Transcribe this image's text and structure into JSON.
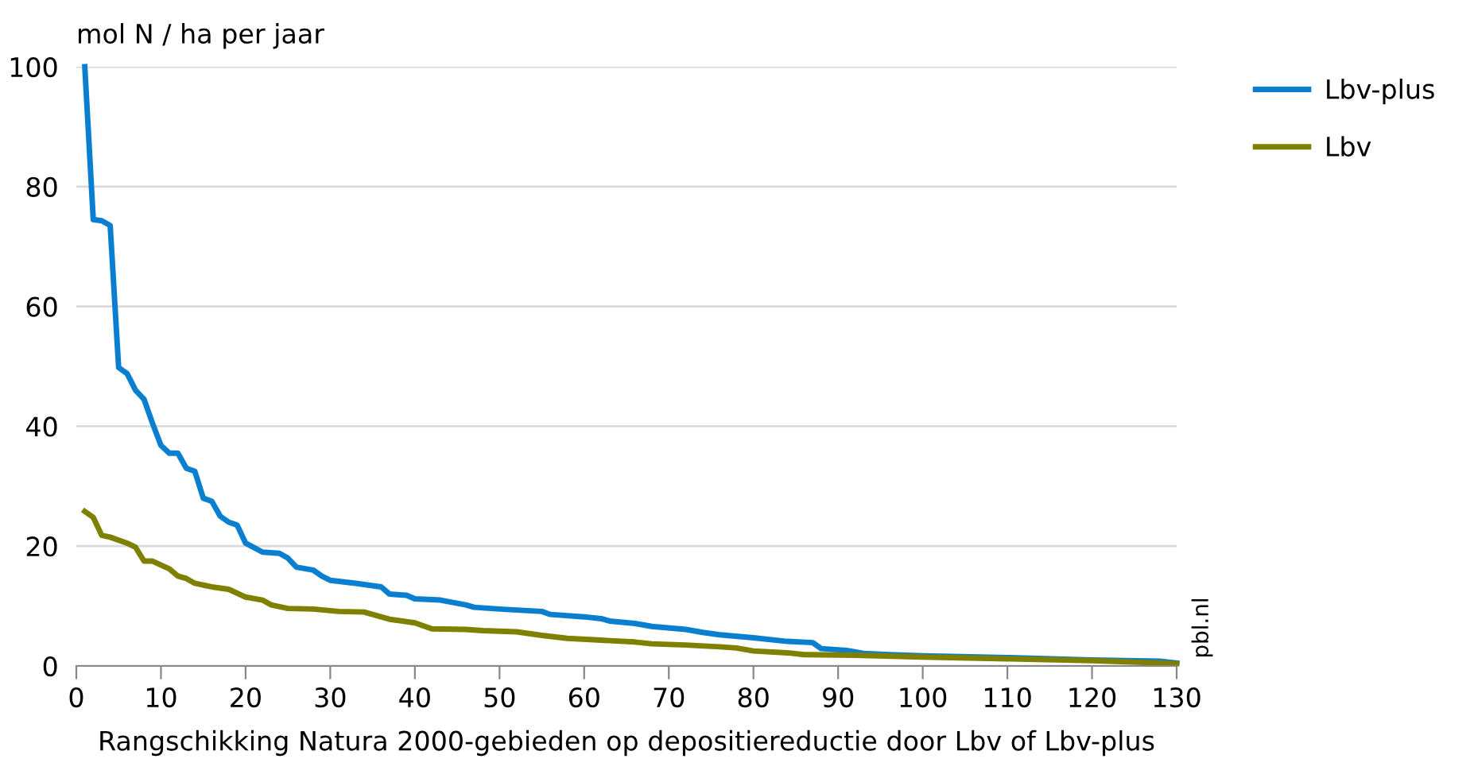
{
  "chart_data": {
    "type": "line",
    "xlabel": "Rangschikking Natura 2000-gebieden op depositiereductie door Lbv of Lbv-plus",
    "ylabel": "mol N / ha per jaar",
    "series": [
      {
        "name": "Lbv-plus",
        "color": "#0a7fd0",
        "x": [
          1,
          2,
          3,
          4,
          5,
          6,
          7,
          8,
          9,
          10,
          11,
          12,
          13,
          14,
          15,
          16,
          17,
          18,
          19,
          20,
          22,
          24,
          25,
          26,
          28,
          29,
          30,
          33,
          36,
          37,
          39,
          40,
          43,
          46,
          47,
          50,
          55,
          56,
          60,
          62,
          63,
          66,
          68,
          72,
          74,
          76,
          80,
          84,
          87,
          88,
          91,
          93,
          96,
          100,
          110,
          120,
          128,
          130
        ],
        "values": [
          100,
          74.5,
          74.3,
          73.5,
          49.8,
          48.8,
          46,
          44.5,
          40.5,
          36.8,
          35.5,
          35.5,
          33,
          32.5,
          28,
          27.5,
          25,
          24,
          23.5,
          20.5,
          19,
          18.8,
          18,
          16.5,
          16,
          15,
          14.3,
          13.8,
          13.2,
          12,
          11.8,
          11.2,
          11,
          10.2,
          9.8,
          9.5,
          9.1,
          8.6,
          8.2,
          7.9,
          7.5,
          7.1,
          6.6,
          6.1,
          5.6,
          5.2,
          4.7,
          4.1,
          3.9,
          2.9,
          2.6,
          2.1,
          1.9,
          1.7,
          1.4,
          1.0,
          0.8,
          0.5
        ]
      },
      {
        "name": "Lbv",
        "color": "#7f8000",
        "x": [
          1,
          2,
          3,
          4,
          6,
          7,
          8,
          9,
          11,
          12,
          13,
          14,
          16,
          18,
          20,
          22,
          23,
          25,
          28,
          31,
          34,
          35,
          37,
          40,
          42,
          46,
          48,
          52,
          55,
          58,
          62,
          66,
          68,
          72,
          76,
          78,
          80,
          84,
          86,
          92,
          100,
          110,
          120,
          130
        ],
        "values": [
          25.8,
          24.8,
          21.8,
          21.5,
          20.5,
          19.8,
          17.5,
          17.5,
          16.2,
          15,
          14.6,
          13.8,
          13.2,
          12.8,
          11.5,
          11,
          10.2,
          9.6,
          9.5,
          9.1,
          9,
          8.6,
          7.8,
          7.2,
          6.2,
          6.1,
          5.9,
          5.7,
          5.1,
          4.6,
          4.3,
          4.0,
          3.7,
          3.5,
          3.2,
          3.0,
          2.5,
          2.2,
          1.9,
          1.8,
          1.5,
          1.2,
          0.9,
          0.4
        ]
      }
    ],
    "xlim": [
      0,
      130
    ],
    "xticks": [
      0,
      10,
      20,
      30,
      40,
      50,
      60,
      70,
      80,
      90,
      100,
      110,
      120,
      130
    ],
    "ylim": [
      0,
      100
    ],
    "yticks": [
      0,
      20,
      40,
      60,
      80,
      100
    ],
    "grid": "y",
    "legend": "right",
    "marker": "none",
    "line_style": "solid",
    "annotations": [
      "pbl.nl"
    ]
  }
}
